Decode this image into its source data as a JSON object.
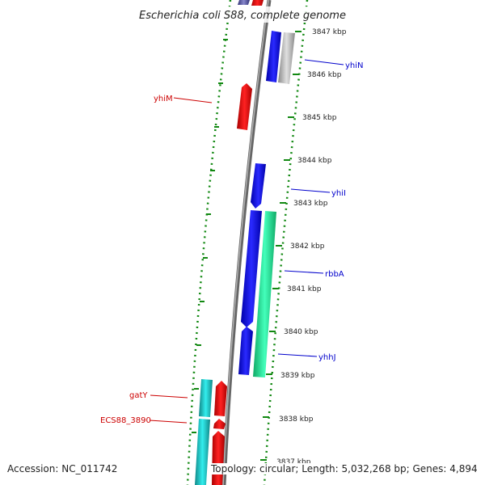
{
  "title": "Escherichia coli S88, complete genome",
  "ticks": [
    "3847 kbp",
    "3846 kbp",
    "3845 kbp",
    "3844 kbp",
    "3843 kbp",
    "3842 kbp",
    "3841 kbp",
    "3840 kbp",
    "3839 kbp",
    "3838 kbp",
    "3837 kbp"
  ],
  "genes": [
    {
      "label": "yhiN",
      "strand": "+",
      "color": "#0000ee"
    },
    {
      "label": "yhiM",
      "strand": "-",
      "color": "#dd0000"
    },
    {
      "label": "yhiI",
      "strand": "+",
      "color": "#0000ee"
    },
    {
      "label": "rbbA",
      "strand": "+",
      "color": "#0000ee"
    },
    {
      "label": "yhhJ",
      "strand": "+",
      "color": "#0000ee"
    },
    {
      "label": "gatY",
      "strand": "-",
      "color": "#dd0000"
    },
    {
      "label": "ECS88_3890",
      "strand": "-",
      "color": "#dd0000"
    }
  ],
  "colors": {
    "forward_cds": "#0000ee",
    "reverse_cds": "#ee0000",
    "rna_gray": "#b8b8b8",
    "green": "#22ee99",
    "cyan": "#22cccc",
    "backbone": "#888888",
    "tick": "#118811"
  },
  "footer": {
    "accession": "Accession: NC_011742",
    "topology": "Topology: circular; Length: 5,032,268 bp; Genes: 4,894"
  }
}
